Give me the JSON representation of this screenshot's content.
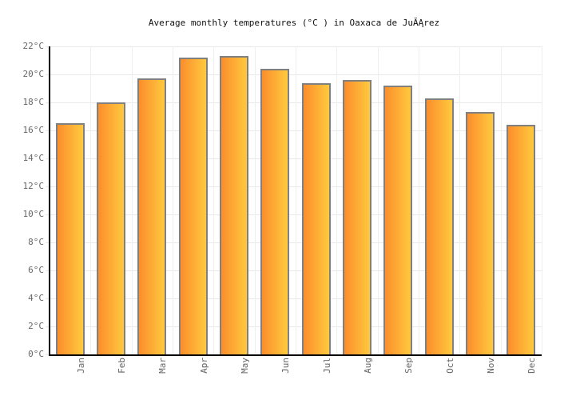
{
  "chart_data": {
    "type": "bar",
    "title": "Average monthly temperatures (°C ) in Oaxaca de JuĂĄrez",
    "categories": [
      "Jan",
      "Feb",
      "Mar",
      "Apr",
      "May",
      "Jun",
      "Jul",
      "Aug",
      "Sep",
      "Oct",
      "Nov",
      "Dec"
    ],
    "values": [
      16.5,
      18,
      19.7,
      21.2,
      21.3,
      20.4,
      19.4,
      19.6,
      19.2,
      18.3,
      17.3,
      16.4
    ],
    "xlabel": "",
    "ylabel": "",
    "ylim": [
      0,
      22
    ],
    "ytick_step": 2,
    "ytick_suffix": "°C",
    "ytick_values": [
      0,
      2,
      4,
      6,
      8,
      10,
      12,
      14,
      16,
      18,
      20,
      22
    ],
    "ytick_labels": [
      "0°C",
      "2°C",
      "4°C",
      "6°C",
      "8°C",
      "10°C",
      "12°C",
      "14°C",
      "16°C",
      "18°C",
      "20°C",
      "22°C"
    ],
    "grid": true,
    "legend": false,
    "colors": {
      "background": "#ffffff",
      "title_color": "#111111",
      "tick_label_color": "#666666",
      "gridline_horizontal": "#e9e9e9",
      "gridline_vertical": "#efefef",
      "axis": "#000000",
      "bar_gradient_start": "#fb8e2c",
      "bar_gradient_end": "#ffc93e",
      "bar_border": "#808080"
    }
  }
}
